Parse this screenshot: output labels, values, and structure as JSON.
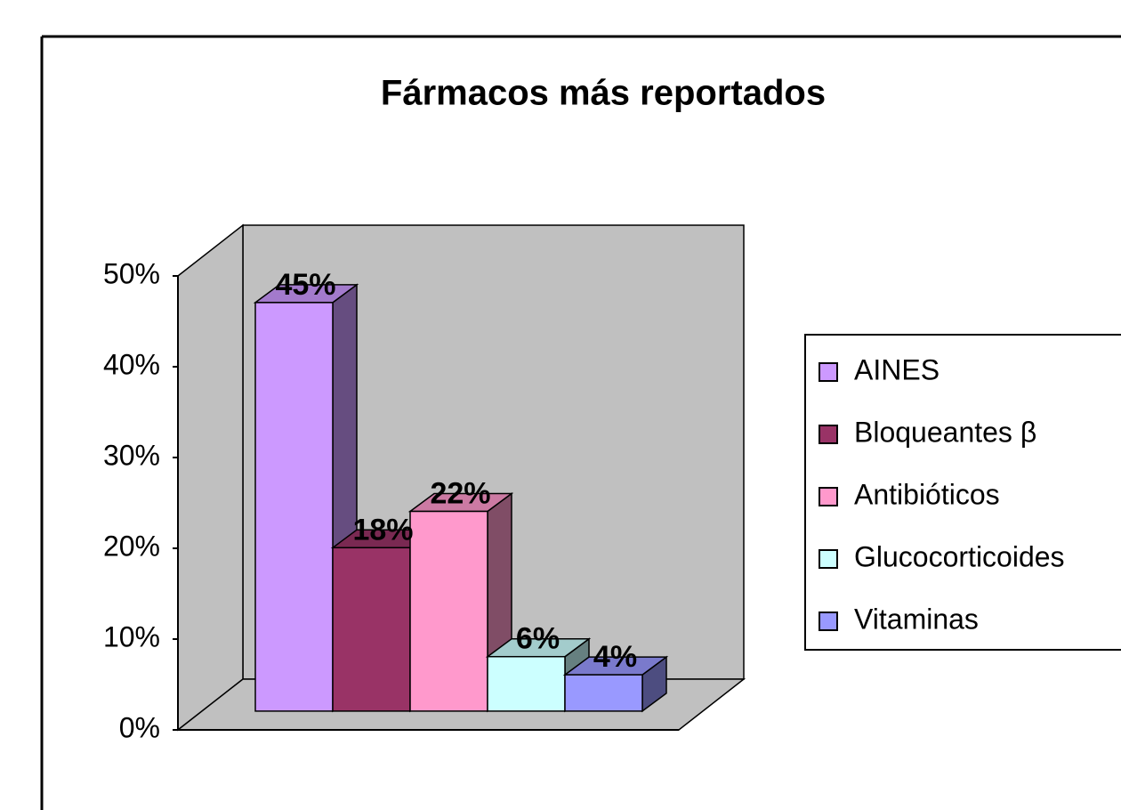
{
  "chart_data": {
    "type": "bar3d",
    "title": "Fármacos más reportados",
    "series": [
      {
        "name": "AINES",
        "color": "#cc99ff",
        "values": [
          45
        ],
        "value_labels": [
          "45%"
        ]
      },
      {
        "name": "Bloqueantes β",
        "color": "#993366",
        "values": [
          18
        ],
        "value_labels": [
          "18%"
        ]
      },
      {
        "name": "Antibióticos",
        "color": "#ff99cc",
        "values": [
          22
        ],
        "value_labels": [
          "22%"
        ]
      },
      {
        "name": "Glucocorticoides",
        "color": "#ccffff",
        "values": [
          6
        ],
        "value_labels": [
          "6%"
        ]
      },
      {
        "name": "Vitaminas",
        "color": "#9999ff",
        "values": [
          4
        ],
        "value_labels": [
          "4%"
        ]
      }
    ],
    "ylim": [
      0,
      50
    ],
    "yticks": [
      {
        "value": 0,
        "label": "0%"
      },
      {
        "value": 10,
        "label": "10%"
      },
      {
        "value": 20,
        "label": "20%"
      },
      {
        "value": 30,
        "label": "30%"
      },
      {
        "value": 40,
        "label": "40%"
      },
      {
        "value": 50,
        "label": "50%"
      }
    ],
    "legend": "right",
    "wall_color": "#c0c0c0"
  }
}
